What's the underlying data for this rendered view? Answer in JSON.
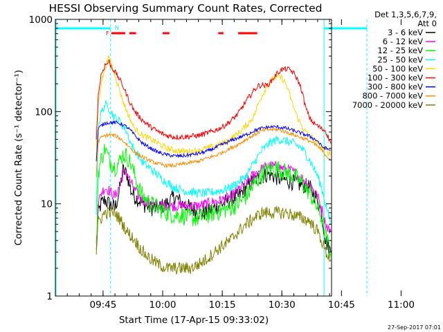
{
  "chart_data": {
    "type": "line",
    "title": "HESSI Observing Summary Count Rates, Corrected",
    "xlabel": "Start Time (17-Apr-15 09:33:02)",
    "ylabel": "Corrected Count Rate (s⁻¹ detector⁻¹)",
    "y_scale": "log",
    "ylim": [
      1,
      1000
    ],
    "xlim_minutes": [
      0,
      69.5
    ],
    "x_ticks": [
      {
        "label": "09:45",
        "min": 12
      },
      {
        "label": "10:00",
        "min": 27
      },
      {
        "label": "10:15",
        "min": 42
      },
      {
        "label": "10:30",
        "min": 57
      },
      {
        "label": "10:45",
        "min": 72
      },
      {
        "label": "11:00",
        "min": 87
      }
    ],
    "y_ticks": [
      {
        "label": "1",
        "value": 1
      },
      {
        "label": "10",
        "value": 10
      },
      {
        "label": "100",
        "value": 100
      },
      {
        "label": "1000",
        "value": 1000
      }
    ],
    "legend": {
      "placement": "right",
      "header": [
        "Det 1,3,5,6,7,9,",
        "Att 0"
      ]
    },
    "markers": {
      "night_label": "N",
      "flare_label": "F",
      "day_bars_min": [
        [
          0,
          13.9
        ],
        [
          67.6,
          78.4
        ]
      ],
      "day_boundaries_min": [
        13.9,
        67.6,
        78.4
      ],
      "flare_bars_min": [
        [
          14.1,
          17.6
        ],
        [
          18.6,
          20.3
        ],
        [
          27.0,
          28.7
        ],
        [
          41.0,
          42.3
        ],
        [
          46.0,
          50.8
        ]
      ]
    },
    "data_start_min": 10.3,
    "data_end_min": 69.3,
    "series": [
      {
        "name": "3 - 6 keV",
        "color": "#000000",
        "x": [
          10.3,
          10.8,
          11.5,
          12.5,
          13.5,
          15,
          16,
          17,
          18,
          19,
          20,
          21,
          22,
          24,
          26,
          28,
          30,
          32,
          34,
          36,
          38,
          40,
          42,
          44,
          46,
          48,
          50,
          52,
          54,
          56,
          58,
          60,
          62,
          64,
          66,
          67,
          68,
          69.3
        ],
        "values": [
          3,
          8,
          10,
          11,
          10,
          9,
          13,
          23,
          21,
          14,
          12,
          11,
          10,
          9,
          9,
          10,
          12,
          10,
          9,
          8,
          8,
          9,
          10,
          11,
          12,
          15,
          18,
          20,
          21,
          19,
          18,
          17,
          16,
          15,
          11,
          8,
          4,
          3
        ]
      },
      {
        "name": "6 - 12 keV",
        "color": "#ff00ff",
        "x": [
          10.3,
          10.8,
          11.5,
          12.5,
          13.5,
          15,
          16,
          17,
          18,
          19,
          20,
          21,
          22,
          24,
          26,
          28,
          30,
          32,
          34,
          36,
          38,
          40,
          42,
          44,
          46,
          48,
          50,
          52,
          54,
          56,
          58,
          60,
          62,
          64,
          66,
          67,
          68,
          69.3
        ],
        "values": [
          4,
          10,
          13,
          15,
          14,
          12,
          15,
          21,
          22,
          17,
          14,
          12,
          11,
          10,
          9.5,
          9.5,
          9.5,
          9.5,
          9.5,
          9.5,
          10,
          10.5,
          11,
          12,
          14,
          17,
          21,
          24,
          26,
          25,
          24,
          22,
          19,
          16,
          12,
          9,
          6,
          5
        ]
      },
      {
        "name": "12 - 25 keV",
        "color": "#00ff00",
        "x": [
          10.3,
          10.8,
          11.5,
          12.5,
          13.5,
          15,
          16,
          17,
          18,
          19,
          20,
          21,
          22,
          24,
          26,
          28,
          30,
          32,
          34,
          36,
          38,
          40,
          42,
          44,
          46,
          48,
          50,
          52,
          54,
          56,
          58,
          60,
          62,
          64,
          66,
          67,
          68,
          69.3
        ],
        "values": [
          3,
          22,
          30,
          40,
          30,
          25,
          28,
          34,
          33,
          27,
          20,
          15,
          12,
          10,
          9,
          8,
          7.5,
          7.5,
          7,
          7,
          7.5,
          8,
          8.5,
          9,
          10,
          12,
          16,
          21,
          24,
          24,
          22,
          20,
          17,
          13,
          9,
          7,
          4.5,
          3
        ]
      },
      {
        "name": "25 - 50 keV",
        "color": "#00ffff",
        "x": [
          10.3,
          10.8,
          11.5,
          12.5,
          13.5,
          15,
          16,
          17,
          18,
          19,
          20,
          21,
          22,
          24,
          26,
          28,
          30,
          32,
          34,
          36,
          38,
          40,
          42,
          44,
          46,
          48,
          50,
          52,
          54,
          56,
          58,
          60,
          62,
          64,
          66,
          67,
          68,
          69.3
        ],
        "values": [
          8,
          70,
          95,
          120,
          110,
          85,
          80,
          70,
          60,
          45,
          38,
          33,
          28,
          24,
          20,
          17,
          15,
          14,
          13.5,
          13,
          13,
          13.5,
          14,
          15,
          17,
          20,
          28,
          38,
          46,
          50,
          48,
          45,
          40,
          30,
          20,
          15,
          10,
          6
        ]
      },
      {
        "name": "50 - 100 keV",
        "color": "#ffd700",
        "x": [
          10.3,
          10.8,
          11.5,
          12.5,
          13,
          13.5,
          14,
          15,
          16,
          17,
          18,
          19,
          20,
          22,
          24,
          26,
          28,
          30,
          32,
          34,
          36,
          38,
          40,
          42,
          44,
          46,
          48,
          50,
          51,
          52,
          53,
          54,
          55,
          56,
          57,
          58,
          59,
          60,
          61,
          62,
          63,
          64,
          65,
          66,
          67,
          68,
          69.3
        ],
        "values": [
          40,
          120,
          200,
          300,
          340,
          380,
          330,
          250,
          180,
          130,
          100,
          80,
          65,
          55,
          50,
          45,
          40,
          38,
          37,
          37,
          38,
          40,
          42,
          45,
          50,
          58,
          70,
          90,
          120,
          150,
          180,
          210,
          230,
          240,
          230,
          200,
          150,
          110,
          85,
          70,
          60,
          55,
          50,
          45,
          40,
          38,
          35
        ]
      },
      {
        "name": "100 - 300 keV",
        "color": "#ff0000",
        "x": [
          10.3,
          10.8,
          11.5,
          12.5,
          13,
          13.5,
          14,
          15,
          16,
          17,
          18,
          19,
          20,
          22,
          24,
          26,
          28,
          30,
          32,
          34,
          36,
          38,
          40,
          42,
          44,
          46,
          48,
          50,
          51,
          52,
          53,
          54,
          55,
          56,
          57,
          58,
          59,
          60,
          61,
          62,
          63,
          64,
          65,
          66,
          67,
          68,
          69.3
        ],
        "values": [
          50,
          150,
          250,
          320,
          330,
          350,
          310,
          270,
          230,
          190,
          150,
          120,
          100,
          80,
          68,
          60,
          55,
          53,
          53,
          54,
          55,
          58,
          62,
          68,
          78,
          95,
          130,
          170,
          190,
          195,
          190,
          205,
          235,
          265,
          285,
          290,
          285,
          260,
          220,
          170,
          110,
          85,
          75,
          70,
          65,
          62,
          45
        ]
      },
      {
        "name": "300 - 800 keV",
        "color": "#0000ff",
        "x": [
          10.3,
          10.8,
          11.5,
          12.5,
          13.5,
          15,
          16,
          17,
          18,
          19,
          20,
          22,
          24,
          26,
          28,
          30,
          32,
          34,
          36,
          38,
          40,
          42,
          44,
          46,
          48,
          50,
          52,
          54,
          56,
          58,
          60,
          62,
          64,
          66,
          67,
          68,
          69.3
        ],
        "values": [
          30,
          65,
          70,
          75,
          76,
          76,
          75,
          72,
          68,
          62,
          55,
          45,
          40,
          36,
          34,
          33,
          33,
          34,
          35,
          37,
          40,
          44,
          48,
          52,
          56,
          62,
          66,
          68,
          68,
          66,
          62,
          58,
          54,
          48,
          42,
          40,
          38
        ]
      },
      {
        "name": "800 - 7000 keV",
        "color": "#ff8c00",
        "x": [
          10.3,
          10.8,
          11.5,
          12.5,
          13.5,
          15,
          16,
          17,
          18,
          19,
          20,
          22,
          24,
          26,
          28,
          30,
          32,
          34,
          36,
          38,
          40,
          42,
          44,
          46,
          48,
          50,
          52,
          54,
          56,
          58,
          60,
          62,
          64,
          66,
          67,
          68,
          69.3
        ],
        "values": [
          20,
          48,
          52,
          55,
          56,
          55,
          52,
          48,
          44,
          40,
          36,
          32,
          29,
          27,
          26,
          26,
          27,
          28,
          29,
          31,
          33,
          36,
          40,
          44,
          50,
          56,
          62,
          64,
          64,
          60,
          56,
          52,
          48,
          42,
          38,
          34,
          30
        ]
      },
      {
        "name": "7000 - 20000 keV",
        "color": "#808000",
        "x": [
          10.3,
          10.8,
          11.5,
          12.5,
          13.5,
          15,
          16,
          17,
          18,
          19,
          20,
          22,
          24,
          26,
          28,
          30,
          32,
          34,
          36,
          38,
          40,
          42,
          44,
          46,
          48,
          50,
          52,
          54,
          56,
          58,
          60,
          62,
          64,
          66,
          67,
          68,
          69.3
        ],
        "values": [
          3,
          6.5,
          7,
          8,
          8,
          8,
          7,
          6,
          5,
          4.5,
          4,
          3,
          2.5,
          2.2,
          2,
          2,
          2,
          2,
          2.2,
          2.5,
          3,
          3.5,
          4,
          5,
          6,
          7,
          8,
          8,
          8,
          8,
          7.5,
          7,
          6.5,
          5,
          4,
          3,
          2.5
        ]
      }
    ]
  },
  "footer": {
    "timestamp": "27-Sep-2017 07:01"
  }
}
